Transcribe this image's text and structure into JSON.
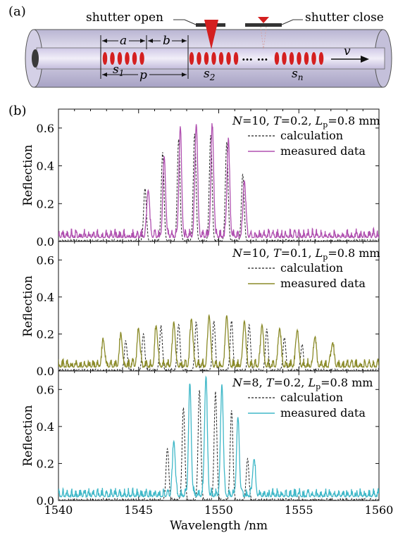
{
  "panel_a": {
    "label": "(a)",
    "shutter_open_label": "shutter open",
    "shutter_close_label": "shutter close",
    "label_a": "a",
    "label_b": "b",
    "label_p": "p",
    "label_s1": "s1",
    "label_s2": "s2",
    "label_sn": "sn",
    "label_v": "v",
    "ellipsis": "… …",
    "colors": {
      "fiber": "#c9c6dc",
      "core": "#d9d4ea",
      "grating": "#d42020",
      "shutter": "#333333"
    }
  },
  "panel_b": {
    "label": "(b)"
  },
  "chart_data": [
    {
      "type": "line",
      "legend_title": "N=10, T=0.2, Lp=0.8 mm",
      "ylabel": "Reflection",
      "xlim": [
        1540,
        1560
      ],
      "ylim": [
        0,
        0.7
      ],
      "yticks": [
        "0.0",
        "0.2",
        "0.4",
        "0.6"
      ],
      "legend_position": "top-right",
      "series": [
        {
          "name": "calculation",
          "color": "#222222",
          "dashed": true,
          "peaks": [
            [
              1545.4,
              0.28
            ],
            [
              1546.5,
              0.47
            ],
            [
              1547.5,
              0.54
            ],
            [
              1548.5,
              0.57
            ],
            [
              1549.5,
              0.56
            ],
            [
              1550.5,
              0.52
            ],
            [
              1551.5,
              0.35
            ]
          ]
        },
        {
          "name": "measured data",
          "color": "#b050b0",
          "dashed": false,
          "peaks": [
            [
              1545.6,
              0.25
            ],
            [
              1546.6,
              0.42
            ],
            [
              1547.6,
              0.56
            ],
            [
              1548.6,
              0.6
            ],
            [
              1549.6,
              0.58
            ],
            [
              1550.6,
              0.5
            ],
            [
              1551.6,
              0.3
            ]
          ]
        }
      ]
    },
    {
      "type": "line",
      "legend_title": "N=10, T=0.1, Lp=0.8 mm",
      "ylabel": "Reflection",
      "xlim": [
        1540,
        1560
      ],
      "ylim": [
        0,
        0.7
      ],
      "yticks": [
        "0.0",
        "0.2",
        "0.4",
        "0.6"
      ],
      "legend_position": "top-right",
      "series": [
        {
          "name": "calculation",
          "color": "#222222",
          "dashed": true,
          "peaks": [
            [
              1544.2,
              0.16
            ],
            [
              1545.3,
              0.2
            ],
            [
              1546.4,
              0.24
            ],
            [
              1547.5,
              0.25
            ],
            [
              1548.6,
              0.26
            ],
            [
              1549.7,
              0.27
            ],
            [
              1550.8,
              0.27
            ],
            [
              1551.9,
              0.25
            ],
            [
              1553.0,
              0.22
            ],
            [
              1554.1,
              0.18
            ],
            [
              1555.2,
              0.14
            ]
          ]
        },
        {
          "name": "measured data",
          "color": "#8a8a28",
          "dashed": false,
          "peaks": [
            [
              1542.8,
              0.14
            ],
            [
              1543.9,
              0.17
            ],
            [
              1545.0,
              0.2
            ],
            [
              1546.1,
              0.22
            ],
            [
              1547.2,
              0.24
            ],
            [
              1548.3,
              0.26
            ],
            [
              1549.4,
              0.28
            ],
            [
              1550.5,
              0.28
            ],
            [
              1551.6,
              0.25
            ],
            [
              1552.7,
              0.23
            ],
            [
              1553.8,
              0.21
            ],
            [
              1554.9,
              0.2
            ],
            [
              1556.0,
              0.16
            ],
            [
              1557.1,
              0.13
            ]
          ]
        }
      ]
    },
    {
      "type": "line",
      "legend_title": "N=8, T=0.2, Lp=0.8 mm",
      "ylabel": "Reflection",
      "xlabel": "Wavelength /nm",
      "xlim": [
        1540,
        1560
      ],
      "ylim": [
        0,
        0.7
      ],
      "yticks": [
        "0.0",
        "0.2",
        "0.4",
        "0.6"
      ],
      "xticks": [
        "1540",
        "1545",
        "1550",
        "1555",
        "1560"
      ],
      "legend_position": "top-right",
      "series": [
        {
          "name": "calculation",
          "color": "#222222",
          "dashed": true,
          "peaks": [
            [
              1546.8,
              0.28
            ],
            [
              1547.8,
              0.5
            ],
            [
              1548.8,
              0.59
            ],
            [
              1549.8,
              0.58
            ],
            [
              1550.8,
              0.48
            ],
            [
              1551.8,
              0.22
            ]
          ]
        },
        {
          "name": "measured data",
          "color": "#40b8c8",
          "dashed": false,
          "peaks": [
            [
              1547.2,
              0.3
            ],
            [
              1548.2,
              0.58
            ],
            [
              1549.2,
              0.64
            ],
            [
              1550.2,
              0.6
            ],
            [
              1551.2,
              0.42
            ],
            [
              1552.2,
              0.2
            ]
          ]
        }
      ]
    }
  ]
}
